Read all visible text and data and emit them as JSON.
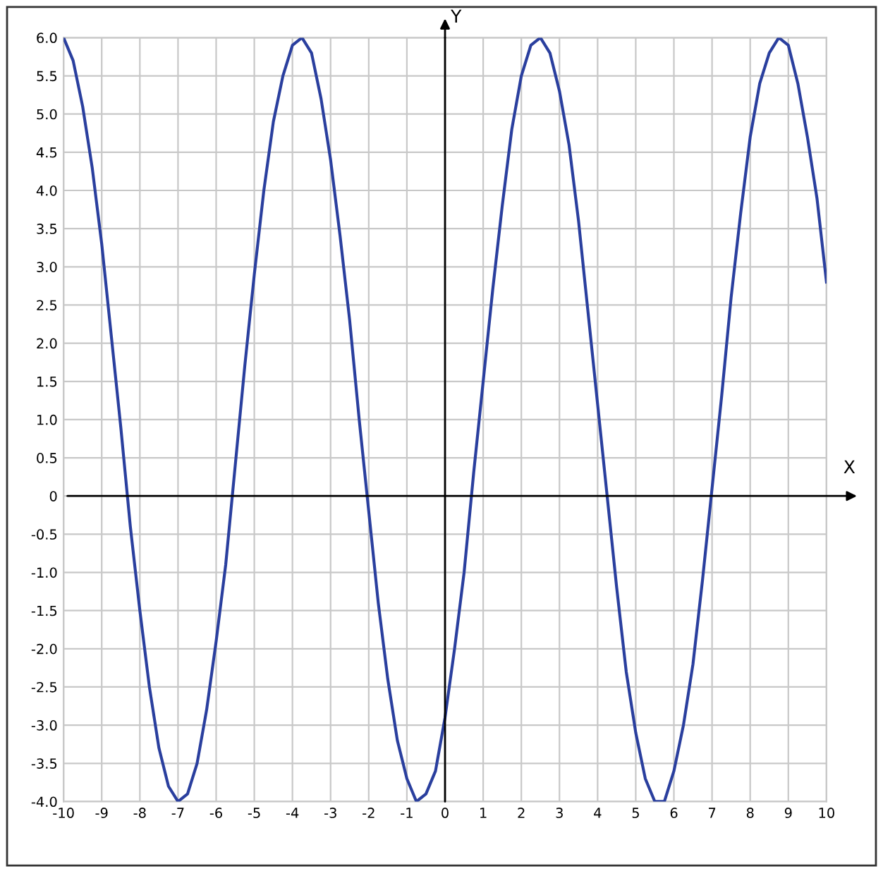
{
  "chart_data": {
    "type": "line",
    "xlabel": "X",
    "ylabel": "Y",
    "x": [
      -10,
      -9.75,
      -9.5,
      -9.25,
      -9,
      -8.75,
      -8.5,
      -8.25,
      -8,
      -7.75,
      -7.5,
      -7.25,
      -7,
      -6.75,
      -6.5,
      -6.25,
      -6,
      -5.75,
      -5.5,
      -5.25,
      -5,
      -4.75,
      -4.5,
      -4.25,
      -4,
      -3.75,
      -3.5,
      -3.25,
      -3,
      -2.75,
      -2.5,
      -2.25,
      -2,
      -1.75,
      -1.5,
      -1.25,
      -1,
      -0.75,
      -0.5,
      -0.25,
      0,
      0.25,
      0.5,
      0.75,
      1,
      1.25,
      1.5,
      1.75,
      2,
      2.25,
      2.5,
      2.75,
      3,
      3.25,
      3.5,
      3.75,
      4,
      4.25,
      4.5,
      4.75,
      5,
      5.25,
      5.5,
      5.75,
      6,
      6.25,
      6.5,
      6.75,
      7,
      7.25,
      7.5,
      7.75,
      8,
      8.25,
      8.5,
      8.75,
      9,
      9.25,
      9.5,
      9.75,
      10
    ],
    "series": [
      {
        "color": "#2a3f9e",
        "values": [
          6.0,
          5.7,
          5.1,
          4.3,
          3.3,
          2.1,
          0.9,
          -0.4,
          -1.5,
          -2.5,
          -3.3,
          -3.8,
          -4.0,
          -3.9,
          -3.5,
          -2.8,
          -1.9,
          -0.9,
          0.4,
          1.7,
          2.9,
          4.0,
          4.9,
          5.5,
          5.9,
          6.0,
          5.8,
          5.2,
          4.4,
          3.4,
          2.3,
          1.0,
          -0.2,
          -1.4,
          -2.4,
          -3.2,
          -3.7,
          -4.0,
          -3.9,
          -3.6,
          -2.9,
          -2.0,
          -1.0,
          0.3,
          1.5,
          2.7,
          3.8,
          4.8,
          5.5,
          5.9,
          6.0,
          5.8,
          5.3,
          4.6,
          3.6,
          2.4,
          1.2,
          0.0,
          -1.2,
          -2.3,
          -3.1,
          -3.7,
          -4.0,
          -4.0,
          -3.6,
          -3.0,
          -2.2,
          -1.1,
          0.1,
          1.3,
          2.6,
          3.7,
          4.7,
          5.4,
          5.8,
          6.0,
          5.9,
          5.4,
          4.7,
          3.9,
          2.8
        ]
      }
    ],
    "xlim": [
      -10,
      10
    ],
    "ylim": [
      -4,
      6
    ],
    "xticks": [
      -10,
      -9,
      -8,
      -7,
      -6,
      -5,
      -4,
      -3,
      -2,
      -1,
      0,
      1,
      2,
      3,
      4,
      5,
      6,
      7,
      8,
      9,
      10
    ],
    "yticks": [
      {
        "value": -4,
        "label": "-4.0"
      },
      {
        "value": -3.5,
        "label": "-3.5"
      },
      {
        "value": -3,
        "label": "-3.0"
      },
      {
        "value": -2.5,
        "label": "-2.5"
      },
      {
        "value": -2,
        "label": "-2.0"
      },
      {
        "value": -1.5,
        "label": "-1.5"
      },
      {
        "value": -1,
        "label": "-1.0"
      },
      {
        "value": -0.5,
        "label": "-0.5"
      },
      0,
      {
        "value": 0.5,
        "label": "0.5"
      },
      {
        "value": 1,
        "label": "1.0"
      },
      {
        "value": 1.5,
        "label": "1.5"
      },
      {
        "value": 2,
        "label": "2.0"
      },
      {
        "value": 2.5,
        "label": "2.5"
      },
      {
        "value": 3,
        "label": "3.0"
      },
      {
        "value": 3.5,
        "label": "3.5"
      },
      {
        "value": 4,
        "label": "4.0"
      },
      {
        "value": 4.5,
        "label": "4.5"
      },
      {
        "value": 5,
        "label": "5.0"
      },
      {
        "value": 5.5,
        "label": "5.5"
      },
      {
        "value": 6,
        "label": "6.0"
      }
    ],
    "grid": true,
    "marker": "none",
    "line_style": "solid"
  }
}
